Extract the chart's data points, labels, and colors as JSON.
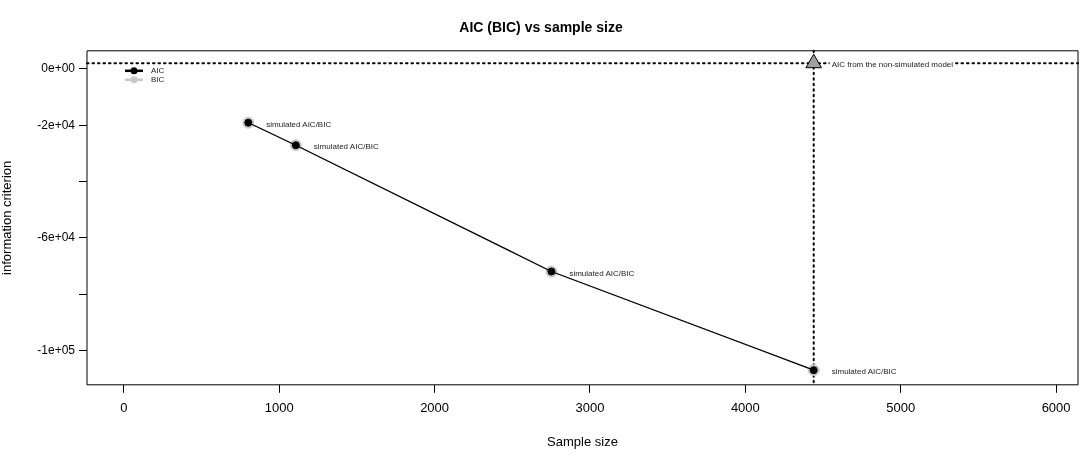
{
  "chart_data": {
    "type": "line",
    "title": "AIC (BIC) vs sample size",
    "xlabel": "Sample size",
    "ylabel": "information criterion",
    "xlim": [
      -237,
      6141
    ],
    "xticks": [
      0,
      1000,
      2000,
      3000,
      4000,
      5000,
      6000
    ],
    "ylim": [
      -112100,
      6400
    ],
    "yticks": [
      {
        "value": 0,
        "label": "0e+00"
      },
      {
        "value": -20000,
        "label": "-2e+04"
      },
      {
        "value": -40000,
        "label": null
      },
      {
        "value": -60000,
        "label": "-6e+04"
      },
      {
        "value": -80000,
        "label": null
      },
      {
        "value": -100000,
        "label": "-1e+05"
      }
    ],
    "series": [
      {
        "name": "BIC",
        "color": "#c8c8c8",
        "x": [
          801,
          1107,
          2752,
          4440
        ],
        "values": [
          -19100,
          -27100,
          -71900,
          -106900
        ]
      },
      {
        "name": "AIC",
        "color": "#000000",
        "x": [
          801,
          1107,
          2752,
          4440
        ],
        "values": [
          -19100,
          -27100,
          -71900,
          -106900
        ]
      },
      {
        "type": "scatter",
        "color": "#a0a0a0",
        "marker": "triangle",
        "x": [
          4440
        ],
        "values": [
          2000
        ]
      }
    ],
    "marker": "circle",
    "grid": false,
    "legend": "top left",
    "ref_lines": [
      {
        "axis": "y",
        "value": 2000,
        "line_style": "dotted",
        "color": "#000000"
      },
      {
        "axis": "x",
        "value": 4440,
        "line_style": "dotted",
        "color": "#000000"
      }
    ],
    "annotations": [
      {
        "text": "simulated AIC/BIC",
        "x": 801,
        "y": -19100
      },
      {
        "text": "simulated AIC/BIC",
        "x": 1107,
        "y": -27100
      },
      {
        "text": "simulated AIC/BIC",
        "x": 2752,
        "y": -71900
      },
      {
        "text": "simulated AIC/BIC",
        "x": 4440,
        "y": -106900
      },
      {
        "text": "AIC from the non-simulated model",
        "x": 4440,
        "y": 2000
      }
    ]
  }
}
